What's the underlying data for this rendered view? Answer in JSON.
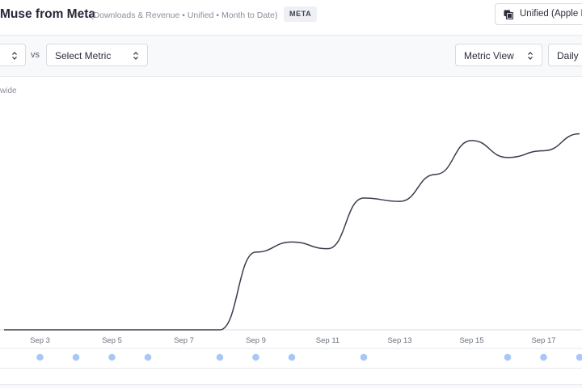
{
  "header": {
    "title": "Muse from Meta",
    "subtitle": "(Downloads & Revenue  •  Unified  •  Month to Date)",
    "badge": "META",
    "unified_button": "Unified (Apple I"
  },
  "toolbar": {
    "vs_label": "vs",
    "metric_select": "Select Metric",
    "view_select": "Metric View",
    "granularity_select": "Daily"
  },
  "chart": {
    "partial_label": "wide",
    "line_color": "#3a3c4c",
    "event_dot_color": "#a9c7f5"
  },
  "chart_data": {
    "type": "line",
    "title": "",
    "xlabel": "",
    "ylabel": "",
    "x_ticks": [
      "Sep 3",
      "Sep 5",
      "Sep 7",
      "Sep 9",
      "Sep 11",
      "Sep 13",
      "Sep 15",
      "Sep 17"
    ],
    "x": [
      "Sep 2",
      "Sep 3",
      "Sep 4",
      "Sep 5",
      "Sep 6",
      "Sep 7",
      "Sep 8",
      "Sep 9",
      "Sep 10",
      "Sep 11",
      "Sep 12",
      "Sep 13",
      "Sep 14",
      "Sep 15",
      "Sep 16",
      "Sep 17",
      "Sep 18"
    ],
    "series": [
      {
        "values": [
          0,
          0,
          0,
          0,
          0,
          0,
          0,
          23,
          26,
          24,
          39,
          38,
          46,
          56,
          51,
          53,
          58
        ]
      }
    ],
    "ylim": [
      0,
      100
    ],
    "event_markers": [
      "Sep 3",
      "Sep 4",
      "Sep 5",
      "Sep 6",
      "Sep 8",
      "Sep 9",
      "Sep 10",
      "Sep 12",
      "Sep 16",
      "Sep 17",
      "Sep 18"
    ],
    "grid": false,
    "legend": "none"
  }
}
